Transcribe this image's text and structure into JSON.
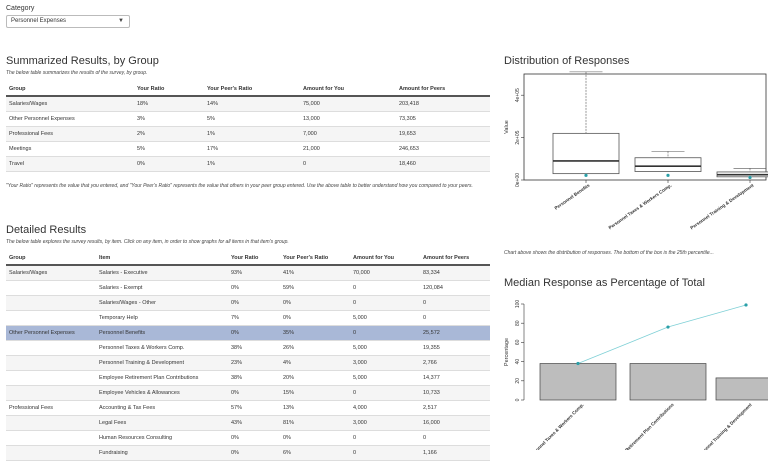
{
  "category": {
    "label": "Category",
    "selected": "Personnel Expenses"
  },
  "summary": {
    "title": "Summarized Results, by Group",
    "subtitle": "The below table summarizes the results of the survey, by group.",
    "headers": [
      "Group",
      "Your Ratio",
      "Your Peer's Ratio",
      "Amount for You",
      "Amount for Peers"
    ],
    "rows": [
      [
        "Salaries/Wages",
        "18%",
        "14%",
        "75,000",
        "203,418"
      ],
      [
        "Other Personnel Expenses",
        "3%",
        "5%",
        "13,000",
        "73,305"
      ],
      [
        "Professional Fees",
        "2%",
        "1%",
        "7,000",
        "19,653"
      ],
      [
        "Meetings",
        "5%",
        "17%",
        "21,000",
        "246,653"
      ],
      [
        "Travel",
        "0%",
        "1%",
        "0",
        "18,460"
      ]
    ],
    "note": "\"Your Ratio\" represents the value that you entered, and \"Your Peer's Ratio\" represents the value that others in your peer group entered. Use the above table to better understand how you compared to your peers."
  },
  "detailed": {
    "title": "Detailed Results",
    "subtitle": "The below table explores the survey results, by item. Click on any item, in order to show graphs for all items in that item's group.",
    "headers": [
      "Group",
      "Item",
      "Your Ratio",
      "Your Peer's Ratio",
      "Amount for You",
      "Amount for Peers"
    ],
    "rows": [
      [
        "Salaries/Wages",
        "Salaries - Executive",
        "93%",
        "41%",
        "70,000",
        "83,334"
      ],
      [
        "",
        "Salaries - Exempt",
        "0%",
        "59%",
        "0",
        "120,084"
      ],
      [
        "",
        "Salaries/Wages - Other",
        "0%",
        "0%",
        "0",
        "0"
      ],
      [
        "",
        "Temporary Help",
        "7%",
        "0%",
        "5,000",
        "0"
      ],
      [
        "Other Personnel Expenses",
        "Personnel Benefits",
        "0%",
        "35%",
        "0",
        "25,572"
      ],
      [
        "",
        "Personnel Taxes & Workers Comp.",
        "38%",
        "26%",
        "5,000",
        "19,355"
      ],
      [
        "",
        "Personnel Training & Development",
        "23%",
        "4%",
        "3,000",
        "2,766"
      ],
      [
        "",
        "Employee Retirement Plan Contributions",
        "38%",
        "20%",
        "5,000",
        "14,377"
      ],
      [
        "",
        "Employee Vehicles & Allowances",
        "0%",
        "15%",
        "0",
        "10,733"
      ],
      [
        "Professional Fees",
        "Accounting & Tax Fees",
        "57%",
        "13%",
        "4,000",
        "2,517"
      ],
      [
        "",
        "Legal Fees",
        "43%",
        "81%",
        "3,000",
        "16,000"
      ],
      [
        "",
        "Human Resources Consulting",
        "0%",
        "0%",
        "0",
        "0"
      ],
      [
        "",
        "Fundraising",
        "0%",
        "6%",
        "0",
        "1,166"
      ]
    ],
    "selected_row": 4
  },
  "distribution": {
    "title": "Distribution of Responses",
    "note": "Chart above shows the distribution of responses. The bottom of the box is the 25th percentile..."
  },
  "median": {
    "title": "Median Response as Percentage of Total"
  },
  "chart_data": [
    {
      "type": "box",
      "title": "Distribution of Responses",
      "ylabel": "Value",
      "yticks": [
        "0e+00",
        "2e+05",
        "4e+05"
      ],
      "ylim": [
        0,
        500000
      ],
      "categories": [
        "Personnel Benefits",
        "Personnel Taxes & Workers Comp.",
        "Personnel Training & Development"
      ],
      "boxes": [
        {
          "whisker_low": 0,
          "q1": 30000,
          "median": 90000,
          "q3": 220000,
          "whisker_high": 510000,
          "point": 22000
        },
        {
          "whisker_low": 0,
          "q1": 40000,
          "median": 65000,
          "q3": 105000,
          "whisker_high": 135000,
          "point": 22000
        },
        {
          "whisker_low": 0,
          "q1": 15000,
          "median": 25000,
          "q3": 38000,
          "whisker_high": 55000,
          "point": 12000
        }
      ]
    },
    {
      "type": "bar",
      "title": "Median Response as Percentage of Total",
      "ylabel": "Percentage",
      "ylim": [
        0,
        100
      ],
      "yticks": [
        "0",
        "20",
        "40",
        "60",
        "80",
        "100"
      ],
      "categories": [
        "Personnel Taxes & Workers Comp.",
        "Employee Retirement Plan Contributions",
        "Personnel Training & Development"
      ],
      "values": [
        38,
        38,
        23
      ],
      "cumulative": [
        38,
        76,
        99
      ]
    }
  ]
}
